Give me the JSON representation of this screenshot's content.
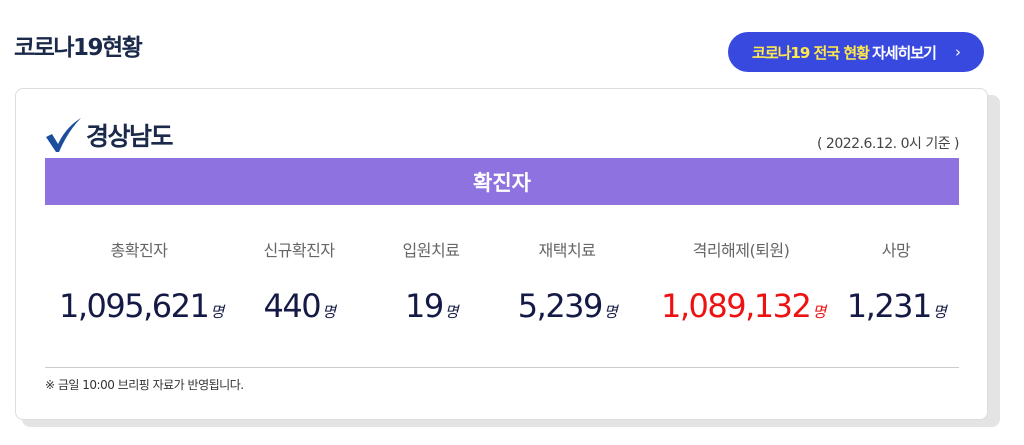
{
  "header": {
    "title": "코로나19현황",
    "button_highlight": "코로나19 전국 현황",
    "button_rest": "자세히보기",
    "button_chevron": "›"
  },
  "card": {
    "region": "경상남도",
    "date": "( 2022.6.12. 0시 기준 )",
    "section": "확진자",
    "stats": [
      {
        "label": "총확진자",
        "value": "1,095,621",
        "unit": "명"
      },
      {
        "label": "신규확진자",
        "value": "440",
        "unit": "명"
      },
      {
        "label": "입원치료",
        "value": "19",
        "unit": "명"
      },
      {
        "label": "재택치료",
        "value": "5,239",
        "unit": "명"
      },
      {
        "label": "격리해제(퇴원)",
        "value": "1,089,132",
        "unit": "명",
        "color": "#ee1111"
      },
      {
        "label": "사망",
        "value": "1,231",
        "unit": "명"
      }
    ],
    "note": "※ 금일 10:00 브리핑 자료가 반영됩니다."
  },
  "colors": {
    "button": "#3849e0",
    "bar": "#8e72e0",
    "highlight": "#ffe94a"
  }
}
